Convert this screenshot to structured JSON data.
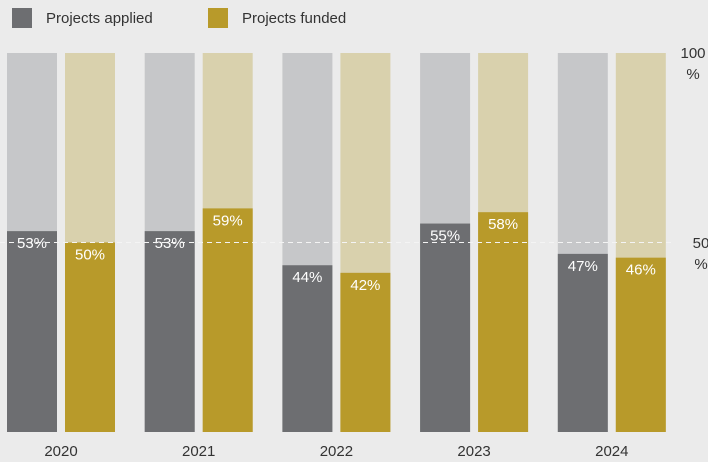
{
  "chart_data": {
    "type": "bar",
    "categories": [
      "2020",
      "2021",
      "2022",
      "2023",
      "2024"
    ],
    "series": [
      {
        "name": "Projects applied",
        "color": "#6d6e71",
        "track_color": "#c6c7c9",
        "values": [
          53,
          53,
          44,
          55,
          47
        ],
        "value_labels": [
          "53%",
          "53%",
          "44%",
          "55%",
          "47%"
        ]
      },
      {
        "name": "Projects funded",
        "color": "#b89a2a",
        "track_color": "#d9d1ad",
        "values": [
          50,
          59,
          42,
          58,
          46
        ],
        "value_labels": [
          "50%",
          "59%",
          "42%",
          "58%",
          "46%"
        ]
      }
    ],
    "ylim": [
      0,
      100
    ],
    "yticks": [
      {
        "value": 50,
        "label": "50%"
      },
      {
        "value": 100,
        "label": "100%"
      }
    ],
    "grid": true,
    "legend": "top-left"
  }
}
